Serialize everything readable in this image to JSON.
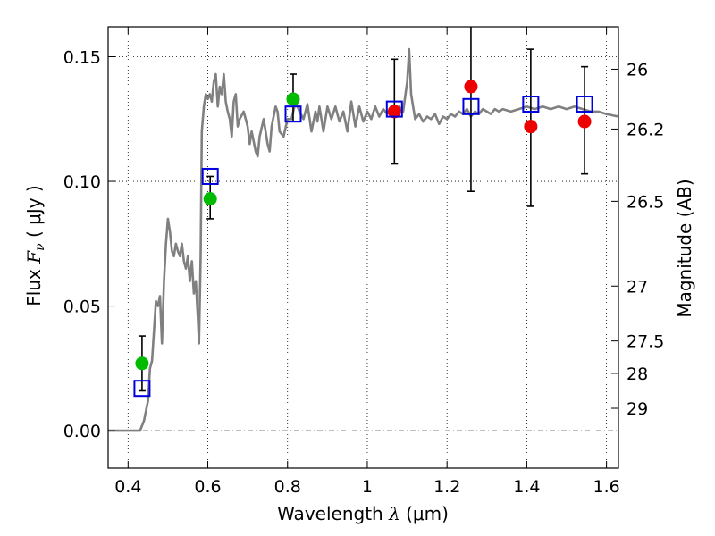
{
  "chart_data": {
    "type": "scatter",
    "xlabel_prefix": "Wavelength",
    "xlabel_symbol": "λ",
    "xlabel_unit": "(μm)",
    "ylabel_prefix": "Flux",
    "ylabel_symbol": "F",
    "ylabel_subscript": "ν",
    "ylabel_unit": "( μJy )",
    "y2label": "Magnitude (AB)",
    "xlim": [
      0.35,
      1.63
    ],
    "ylim": [
      -0.015,
      0.162
    ],
    "xticks": [
      0.4,
      0.6,
      0.8,
      1.0,
      1.2,
      1.4,
      1.6
    ],
    "xtick_labels": [
      "0.4",
      "0.6",
      "0.8",
      "1",
      "1.2",
      "1.4",
      "1.6"
    ],
    "yticks": [
      0.0,
      0.05,
      0.1,
      0.15
    ],
    "ytick_labels": [
      "0.00",
      "0.05",
      "0.10",
      "0.15"
    ],
    "y2ticks": [
      {
        "label": "26",
        "flux": 0.145
      },
      {
        "label": "26.2",
        "flux": 0.121
      },
      {
        "label": "26.5",
        "flux": 0.092
      },
      {
        "label": "27",
        "flux": 0.058
      },
      {
        "label": "27.5",
        "flux": 0.036
      },
      {
        "label": "28",
        "flux": 0.023
      },
      {
        "label": "29",
        "flux": 0.009
      }
    ],
    "grid": true,
    "colors": {
      "model": "#808080",
      "green": "#00bb00",
      "red": "#ee0000",
      "square": "#0000dd",
      "errorbar": "#000000"
    },
    "model_spectrum": [
      [
        0.35,
        0.0
      ],
      [
        0.4,
        0.0
      ],
      [
        0.43,
        0.0
      ],
      [
        0.44,
        0.004
      ],
      [
        0.45,
        0.012
      ],
      [
        0.455,
        0.025
      ],
      [
        0.46,
        0.028
      ],
      [
        0.465,
        0.04
      ],
      [
        0.47,
        0.052
      ],
      [
        0.475,
        0.05
      ],
      [
        0.48,
        0.054
      ],
      [
        0.485,
        0.035
      ],
      [
        0.49,
        0.06
      ],
      [
        0.495,
        0.075
      ],
      [
        0.5,
        0.085
      ],
      [
        0.505,
        0.08
      ],
      [
        0.51,
        0.072
      ],
      [
        0.515,
        0.07
      ],
      [
        0.52,
        0.075
      ],
      [
        0.525,
        0.072
      ],
      [
        0.53,
        0.07
      ],
      [
        0.535,
        0.075
      ],
      [
        0.54,
        0.068
      ],
      [
        0.545,
        0.065
      ],
      [
        0.55,
        0.07
      ],
      [
        0.555,
        0.06
      ],
      [
        0.56,
        0.068
      ],
      [
        0.565,
        0.055
      ],
      [
        0.57,
        0.06
      ],
      [
        0.575,
        0.045
      ],
      [
        0.578,
        0.035
      ],
      [
        0.582,
        0.07
      ],
      [
        0.585,
        0.12
      ],
      [
        0.59,
        0.13
      ],
      [
        0.595,
        0.135
      ],
      [
        0.6,
        0.133
      ],
      [
        0.605,
        0.135
      ],
      [
        0.61,
        0.132
      ],
      [
        0.615,
        0.14
      ],
      [
        0.62,
        0.143
      ],
      [
        0.625,
        0.13
      ],
      [
        0.63,
        0.138
      ],
      [
        0.635,
        0.135
      ],
      [
        0.64,
        0.143
      ],
      [
        0.645,
        0.132
      ],
      [
        0.65,
        0.128
      ],
      [
        0.655,
        0.125
      ],
      [
        0.66,
        0.118
      ],
      [
        0.665,
        0.132
      ],
      [
        0.67,
        0.135
      ],
      [
        0.675,
        0.122
      ],
      [
        0.68,
        0.125
      ],
      [
        0.69,
        0.128
      ],
      [
        0.7,
        0.122
      ],
      [
        0.705,
        0.115
      ],
      [
        0.71,
        0.12
      ],
      [
        0.72,
        0.112
      ],
      [
        0.725,
        0.11
      ],
      [
        0.73,
        0.118
      ],
      [
        0.74,
        0.125
      ],
      [
        0.75,
        0.115
      ],
      [
        0.755,
        0.112
      ],
      [
        0.76,
        0.122
      ],
      [
        0.77,
        0.13
      ],
      [
        0.775,
        0.128
      ],
      [
        0.78,
        0.12
      ],
      [
        0.79,
        0.118
      ],
      [
        0.8,
        0.125
      ],
      [
        0.81,
        0.125
      ],
      [
        0.82,
        0.132
      ],
      [
        0.83,
        0.128
      ],
      [
        0.84,
        0.125
      ],
      [
        0.85,
        0.131
      ],
      [
        0.86,
        0.12
      ],
      [
        0.87,
        0.128
      ],
      [
        0.875,
        0.124
      ],
      [
        0.88,
        0.13
      ],
      [
        0.89,
        0.12
      ],
      [
        0.9,
        0.13
      ],
      [
        0.91,
        0.125
      ],
      [
        0.92,
        0.13
      ],
      [
        0.93,
        0.124
      ],
      [
        0.94,
        0.128
      ],
      [
        0.95,
        0.12
      ],
      [
        0.96,
        0.132
      ],
      [
        0.97,
        0.122
      ],
      [
        0.98,
        0.13
      ],
      [
        0.99,
        0.124
      ],
      [
        1.0,
        0.128
      ],
      [
        1.01,
        0.125
      ],
      [
        1.02,
        0.13
      ],
      [
        1.03,
        0.126
      ],
      [
        1.04,
        0.129
      ],
      [
        1.05,
        0.127
      ],
      [
        1.06,
        0.13
      ],
      [
        1.07,
        0.126
      ],
      [
        1.08,
        0.13
      ],
      [
        1.09,
        0.128
      ],
      [
        1.1,
        0.14
      ],
      [
        1.105,
        0.153
      ],
      [
        1.11,
        0.135
      ],
      [
        1.12,
        0.125
      ],
      [
        1.13,
        0.127
      ],
      [
        1.14,
        0.124
      ],
      [
        1.15,
        0.126
      ],
      [
        1.16,
        0.125
      ],
      [
        1.17,
        0.127
      ],
      [
        1.18,
        0.123
      ],
      [
        1.19,
        0.126
      ],
      [
        1.2,
        0.125
      ],
      [
        1.21,
        0.127
      ],
      [
        1.22,
        0.126
      ],
      [
        1.23,
        0.128
      ],
      [
        1.24,
        0.127
      ],
      [
        1.25,
        0.129
      ],
      [
        1.26,
        0.126
      ],
      [
        1.27,
        0.128
      ],
      [
        1.28,
        0.127
      ],
      [
        1.29,
        0.129
      ],
      [
        1.3,
        0.128
      ],
      [
        1.31,
        0.127
      ],
      [
        1.32,
        0.129
      ],
      [
        1.33,
        0.128
      ],
      [
        1.34,
        0.129
      ],
      [
        1.36,
        0.128
      ],
      [
        1.38,
        0.129
      ],
      [
        1.4,
        0.13
      ],
      [
        1.42,
        0.129
      ],
      [
        1.44,
        0.13
      ],
      [
        1.46,
        0.129
      ],
      [
        1.48,
        0.13
      ],
      [
        1.5,
        0.129
      ],
      [
        1.52,
        0.13
      ],
      [
        1.54,
        0.129
      ],
      [
        1.56,
        0.128
      ],
      [
        1.58,
        0.128
      ],
      [
        1.6,
        0.127
      ],
      [
        1.63,
        0.126
      ]
    ],
    "series": [
      {
        "name": "green-photometry",
        "marker": "circle",
        "points": [
          {
            "x": 0.435,
            "y": 0.027
          },
          {
            "x": 0.606,
            "y": 0.093
          },
          {
            "x": 0.814,
            "y": 0.133
          }
        ]
      },
      {
        "name": "red-photometry",
        "marker": "circle",
        "points": [
          {
            "x": 1.068,
            "y": 0.128
          },
          {
            "x": 1.26,
            "y": 0.138
          },
          {
            "x": 1.41,
            "y": 0.122
          },
          {
            "x": 1.545,
            "y": 0.124
          }
        ]
      },
      {
        "name": "model-photometry",
        "marker": "square",
        "points": [
          {
            "x": 0.435,
            "y": 0.017
          },
          {
            "x": 0.606,
            "y": 0.102
          },
          {
            "x": 0.814,
            "y": 0.127
          },
          {
            "x": 1.068,
            "y": 0.129
          },
          {
            "x": 1.26,
            "y": 0.13
          },
          {
            "x": 1.41,
            "y": 0.131
          },
          {
            "x": 1.545,
            "y": 0.131
          }
        ]
      }
    ],
    "errorbars": [
      {
        "x": 0.435,
        "lo": 0.016,
        "hi": 0.038
      },
      {
        "x": 0.606,
        "lo": 0.085,
        "hi": 0.102
      },
      {
        "x": 0.814,
        "lo": 0.124,
        "hi": 0.143
      },
      {
        "x": 1.068,
        "lo": 0.107,
        "hi": 0.149
      },
      {
        "x": 1.26,
        "lo": 0.096,
        "hi": 0.165
      },
      {
        "x": 1.41,
        "lo": 0.09,
        "hi": 0.153
      },
      {
        "x": 1.545,
        "lo": 0.103,
        "hi": 0.146
      }
    ]
  }
}
